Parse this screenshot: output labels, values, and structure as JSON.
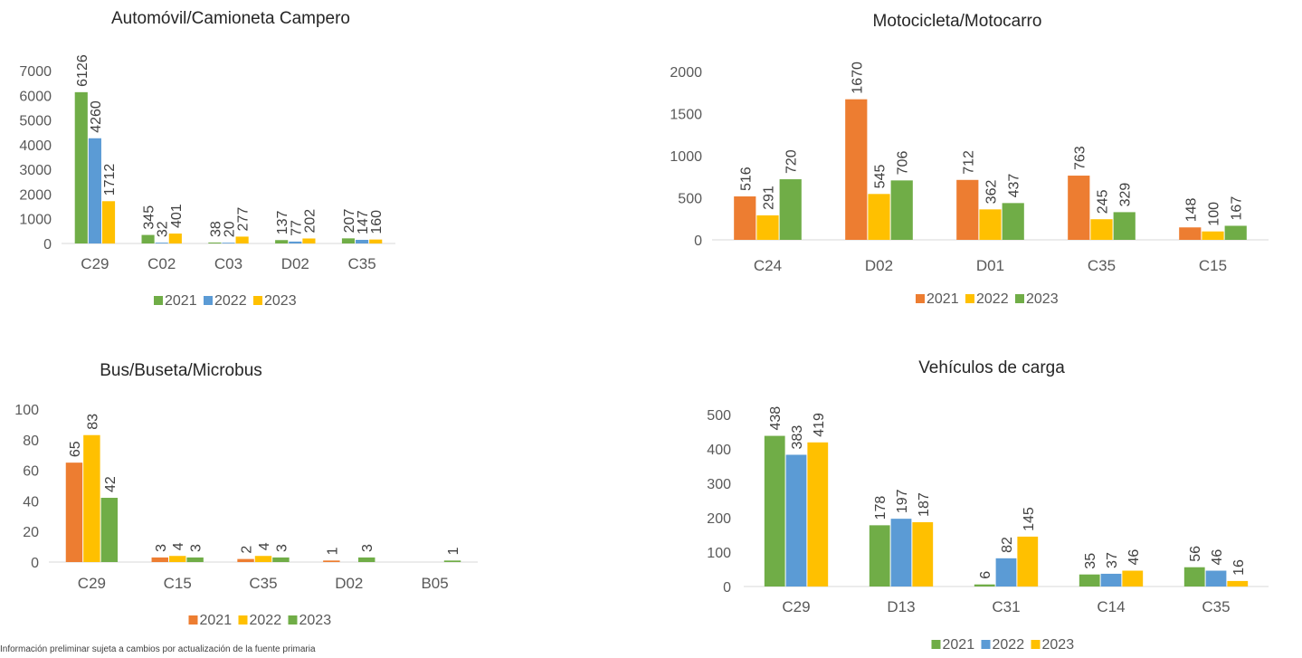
{
  "footnote": "Información preliminar sujeta a cambios por actualización de la fuente primaria",
  "chart_data": [
    {
      "type": "bar",
      "title": "Automóvil/Camioneta Campero",
      "categories": [
        "C29",
        "C02",
        "C03",
        "D02",
        "C35"
      ],
      "series": [
        {
          "name": "2021",
          "color": "#70ad47",
          "values": [
            6126,
            345,
            38,
            137,
            207
          ]
        },
        {
          "name": "2022",
          "color": "#5b9bd5",
          "values": [
            4260,
            32,
            20,
            77,
            147
          ]
        },
        {
          "name": "2023",
          "color": "#ffc000",
          "values": [
            1712,
            401,
            277,
            202,
            160
          ]
        }
      ],
      "yticks": [
        0,
        1000,
        2000,
        3000,
        4000,
        5000,
        6000,
        7000
      ],
      "ylim": [
        0,
        7000
      ],
      "legend": "bottom"
    },
    {
      "type": "bar",
      "title": "Motocicleta/Motocarro",
      "categories": [
        "C24",
        "D02",
        "D01",
        "C35",
        "C15"
      ],
      "series": [
        {
          "name": "2021",
          "color": "#ed7d31",
          "values": [
            516,
            1670,
            712,
            763,
            148
          ]
        },
        {
          "name": "2022",
          "color": "#ffc000",
          "values": [
            291,
            545,
            362,
            245,
            100
          ]
        },
        {
          "name": "2023",
          "color": "#70ad47",
          "values": [
            720,
            706,
            437,
            329,
            167
          ]
        }
      ],
      "yticks": [
        0,
        500,
        1000,
        1500,
        2000
      ],
      "ylim": [
        0,
        2000
      ],
      "legend": "bottom"
    },
    {
      "type": "bar",
      "title": "Bus/Buseta/Microbus",
      "categories": [
        "C29",
        "C15",
        "C35",
        "D02",
        "B05"
      ],
      "series": [
        {
          "name": "2021",
          "color": "#ed7d31",
          "values": [
            65,
            3,
            2,
            1,
            null
          ]
        },
        {
          "name": "2022",
          "color": "#ffc000",
          "values": [
            83,
            4,
            4,
            null,
            null
          ]
        },
        {
          "name": "2023",
          "color": "#70ad47",
          "values": [
            42,
            3,
            3,
            3,
            1
          ]
        }
      ],
      "yticks": [
        0,
        20,
        40,
        60,
        80,
        100
      ],
      "ylim": [
        0,
        100
      ],
      "legend": "bottom"
    },
    {
      "type": "bar",
      "title": "Vehículos de carga",
      "categories": [
        "C29",
        "D13",
        "C31",
        "C14",
        "C35"
      ],
      "series": [
        {
          "name": "2021",
          "color": "#70ad47",
          "values": [
            438,
            178,
            6,
            35,
            56
          ]
        },
        {
          "name": "2022",
          "color": "#5b9bd5",
          "values": [
            383,
            197,
            82,
            37,
            46
          ]
        },
        {
          "name": "2023",
          "color": "#ffc000",
          "values": [
            419,
            187,
            145,
            46,
            16
          ]
        }
      ],
      "yticks": [
        0,
        100,
        200,
        300,
        400,
        500
      ],
      "ylim": [
        0,
        500
      ],
      "legend": "bottom"
    }
  ]
}
